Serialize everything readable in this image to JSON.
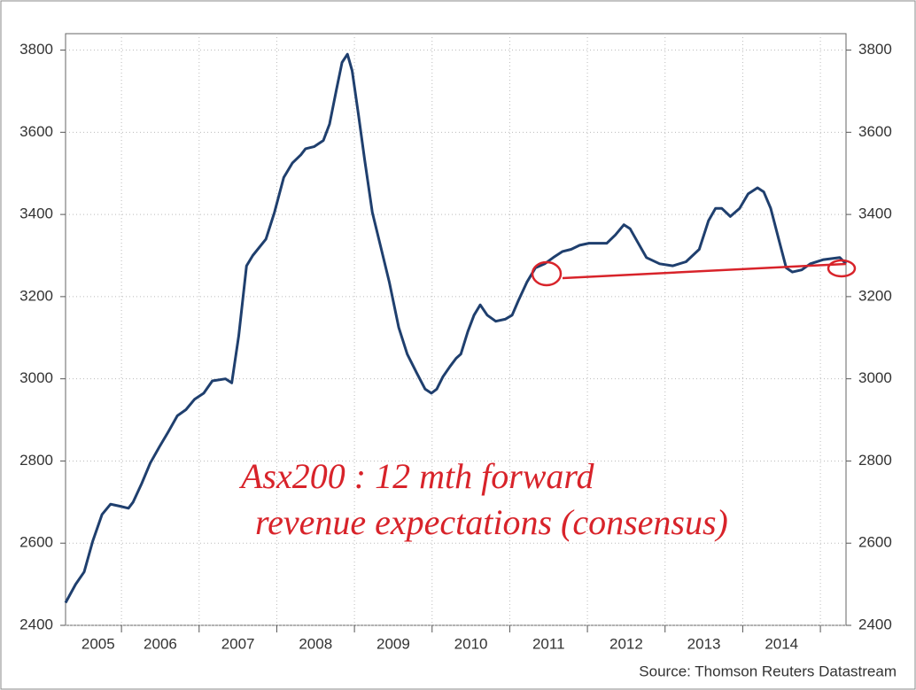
{
  "chart_data": {
    "type": "line",
    "annotations": [
      "Asx200 : 12 mth forward",
      "revenue expectations (consensus)"
    ],
    "source": "Source: Thomson Reuters Datastream",
    "xlim": [
      2005.28,
      2015.33
    ],
    "xticks": [
      {
        "value": 2005.7,
        "label": "2005"
      },
      {
        "value": 2006.5,
        "label": "2006"
      },
      {
        "value": 2007.5,
        "label": "2007"
      },
      {
        "value": 2008.5,
        "label": "2008"
      },
      {
        "value": 2009.5,
        "label": "2009"
      },
      {
        "value": 2010.5,
        "label": "2010"
      },
      {
        "value": 2011.5,
        "label": "2011"
      },
      {
        "value": 2012.5,
        "label": "2012"
      },
      {
        "value": 2013.5,
        "label": "2013"
      },
      {
        "value": 2014.5,
        "label": "2014"
      }
    ],
    "xgrid": [
      2006,
      2007,
      2008,
      2009,
      2010,
      2011,
      2012,
      2013,
      2014,
      2015
    ],
    "ylim": [
      2400,
      3840
    ],
    "yticks": [
      2400,
      2600,
      2800,
      3000,
      3200,
      3400,
      3600,
      3800
    ],
    "y2lim": [
      2400,
      3840
    ],
    "y2ticks": [
      2400,
      2600,
      2800,
      3000,
      3200,
      3400,
      3600,
      3800
    ],
    "grid": true,
    "x": [
      2005.28,
      2005.41,
      2005.52,
      2005.63,
      2005.75,
      2005.86,
      2005.98,
      2006.09,
      2006.15,
      2006.26,
      2006.37,
      2006.49,
      2006.6,
      2006.72,
      2006.83,
      2006.94,
      2007.06,
      2007.17,
      2007.34,
      2007.42,
      2007.51,
      2007.61,
      2007.69,
      2007.86,
      2007.97,
      2008.09,
      2008.2,
      2008.31,
      2008.37,
      2008.48,
      2008.6,
      2008.68,
      2008.77,
      2008.84,
      2008.91,
      2008.97,
      2009.05,
      2009.13,
      2009.23,
      2009.34,
      2009.45,
      2009.57,
      2009.68,
      2009.8,
      2009.91,
      2009.99,
      2010.06,
      2010.14,
      2010.23,
      2010.31,
      2010.37,
      2010.46,
      2010.54,
      2010.62,
      2010.71,
      2010.82,
      2010.94,
      2011.03,
      2011.11,
      2011.22,
      2011.33,
      2011.45,
      2011.56,
      2011.68,
      2011.79,
      2011.9,
      2012.02,
      2012.13,
      2012.25,
      2012.36,
      2012.47,
      2012.55,
      2012.64,
      2012.76,
      2012.93,
      2013.1,
      2013.27,
      2013.44,
      2013.56,
      2013.65,
      2013.73,
      2013.84,
      2013.96,
      2014.07,
      2014.19,
      2014.27,
      2014.36,
      2014.47,
      2014.56,
      2014.64,
      2014.76,
      2014.87,
      2015.04,
      2015.25,
      2015.33
    ],
    "series": [
      {
        "color": "#1f3f6e",
        "values": [
          2455,
          2500,
          2530,
          2605,
          2670,
          2695,
          2690,
          2685,
          2700,
          2745,
          2795,
          2835,
          2870,
          2910,
          2925,
          2950,
          2965,
          2995,
          3000,
          2990,
          3105,
          3275,
          3300,
          3340,
          3405,
          3490,
          3525,
          3545,
          3560,
          3565,
          3580,
          3620,
          3705,
          3770,
          3790,
          3750,
          3645,
          3535,
          3405,
          3320,
          3235,
          3125,
          3060,
          3015,
          2975,
          2965,
          2975,
          3005,
          3030,
          3050,
          3060,
          3115,
          3155,
          3180,
          3155,
          3140,
          3145,
          3155,
          3190,
          3235,
          3270,
          3280,
          3295,
          3310,
          3315,
          3325,
          3330,
          3330,
          3330,
          3350,
          3375,
          3365,
          3335,
          3295,
          3280,
          3275,
          3285,
          3315,
          3385,
          3415,
          3415,
          3395,
          3415,
          3450,
          3465,
          3455,
          3415,
          3335,
          3270,
          3260,
          3265,
          3280,
          3290,
          3295,
          3280
        ]
      }
    ]
  }
}
